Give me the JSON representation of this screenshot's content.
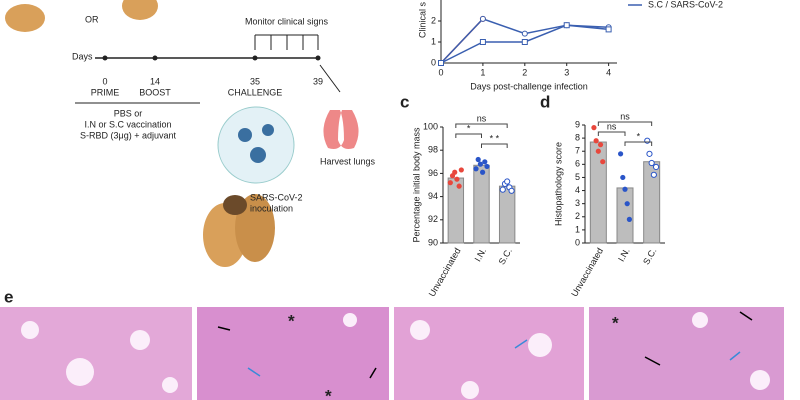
{
  "panels": {
    "c": "c",
    "d": "d",
    "e": "e"
  },
  "diagram": {
    "or": "OR",
    "days_label": "Days",
    "timeline": [
      {
        "day": "0",
        "label": "PRIME"
      },
      {
        "day": "14",
        "label": "BOOST"
      },
      {
        "day": "35",
        "label": "CHALLENGE"
      },
      {
        "day": "39"
      }
    ],
    "monitor": "Monitor clinical signs",
    "treatment": [
      "PBS or",
      "I.N or S.C vaccination",
      "S-RBD (3μg) + adjuvant"
    ],
    "inoculation": [
      "SARS-CoV-2",
      "inoculation"
    ],
    "harvest": "Harvest lungs"
  },
  "micrographs": {
    "marks": [
      "*",
      "*",
      "*"
    ]
  },
  "chart_data": [
    {
      "type": "line",
      "ylabel": "Clinical s",
      "xlabel": "Days post-challenge infection",
      "x": [
        0,
        1,
        2,
        3,
        4
      ],
      "xlim": [
        0,
        4.2
      ],
      "xticks": [
        0,
        1,
        2,
        3,
        4
      ],
      "ylim": [
        0,
        3
      ],
      "yticks": [
        0,
        1,
        2
      ],
      "series": [
        {
          "color": "#e8473c",
          "values": [
            0,
            2.1,
            null,
            null,
            null
          ]
        },
        {
          "color": "#3a5fb0",
          "values": [
            0,
            2.1,
            1.4,
            1.8,
            1.7
          ]
        },
        {
          "name": "S.C / SARS-CoV-2",
          "color": "#3a5fb0",
          "values": [
            0,
            1,
            1,
            1.8,
            1.6
          ]
        }
      ]
    },
    {
      "type": "bar",
      "ylabel": "Percentage initial body mass",
      "categories": [
        "Unvaccinated",
        "I.N.",
        "S.C."
      ],
      "values": [
        95.6,
        96.7,
        94.9
      ],
      "points": [
        [
          95.2,
          95.8,
          96.1,
          95.5,
          94.9,
          96.3
        ],
        [
          96.4,
          97.2,
          96.8,
          96.1,
          97.0,
          96.6
        ],
        [
          94.6,
          95.1,
          95.3,
          94.8,
          94.5
        ]
      ],
      "point_colors": [
        "#e8473c",
        "#2a55c8",
        "#2a55c8"
      ],
      "color": "#bdbdbd",
      "ylim": [
        90,
        100
      ],
      "yticks": [
        90,
        92,
        94,
        96,
        98,
        100
      ],
      "annotations": [
        "*",
        "ns",
        "* *"
      ]
    },
    {
      "type": "bar",
      "ylabel": "Histopathology score",
      "categories": [
        "Unvaccinated",
        "I.N.",
        "S.C."
      ],
      "values": [
        7.7,
        4.2,
        6.2
      ],
      "points": [
        [
          8.8,
          7.8,
          7.0,
          7.5,
          6.2
        ],
        [
          6.8,
          5.0,
          4.1,
          3.0,
          1.8
        ],
        [
          7.8,
          6.8,
          6.1,
          5.2,
          5.8
        ]
      ],
      "point_colors": [
        "#e8473c",
        "#2a55c8",
        "#2a55c8"
      ],
      "color": "#bdbdbd",
      "ylim": [
        0,
        9
      ],
      "yticks": [
        0,
        1,
        2,
        3,
        4,
        5,
        6,
        7,
        8,
        9
      ],
      "annotations": [
        "ns",
        "ns",
        "*"
      ]
    }
  ]
}
